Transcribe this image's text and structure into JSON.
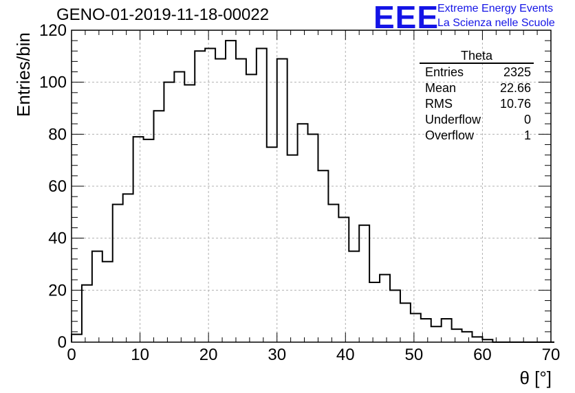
{
  "chart_data": {
    "type": "histogram",
    "title": "GENO-01-2019-11-18-00022",
    "xlabel": "θ [°]",
    "ylabel": "Entries/bin",
    "xlim": [
      0,
      70
    ],
    "ylim": [
      0,
      120
    ],
    "bin_width": 1.5,
    "bin_start": 0,
    "x_ticks": [
      0,
      10,
      20,
      30,
      40,
      50,
      60,
      70
    ],
    "x_tick_labels": [
      "0",
      "10",
      "20",
      "30",
      "40",
      "50",
      "60",
      "70"
    ],
    "y_ticks": [
      0,
      20,
      40,
      60,
      80,
      100,
      120
    ],
    "y_tick_labels": [
      "0",
      "20",
      "40",
      "60",
      "80",
      "100",
      "120"
    ],
    "grid": true,
    "values": [
      3,
      22,
      35,
      31,
      53,
      57,
      79,
      78,
      89,
      100,
      104,
      99,
      112,
      113,
      109,
      116,
      109,
      103,
      113,
      75,
      109,
      72,
      84,
      80,
      66,
      53,
      48,
      35,
      45,
      23,
      26,
      20,
      15,
      11,
      9,
      6,
      9,
      5,
      4,
      2,
      1,
      0,
      0,
      0,
      0,
      0,
      0
    ]
  },
  "stats_box": {
    "title": "Theta",
    "rows": [
      {
        "label": "Entries",
        "value": "2325"
      },
      {
        "label": "Mean",
        "value": "22.66"
      },
      {
        "label": "RMS",
        "value": "10.76"
      },
      {
        "label": "Underflow",
        "value": "0"
      },
      {
        "label": "Overflow",
        "value": "1"
      }
    ]
  },
  "logo": {
    "mark": "EEE",
    "line1": "Extreme Energy Events",
    "line2": "La Scienza nelle Scuole",
    "color": "#1414e6"
  },
  "colors": {
    "line": "#000000",
    "grid": "#b0b0b0",
    "background": "#ffffff"
  }
}
